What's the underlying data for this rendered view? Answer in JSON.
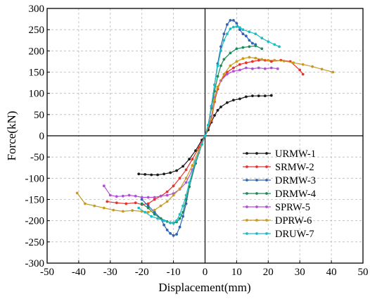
{
  "chart_data": {
    "type": "line",
    "xlabel": "Displacement(mm)",
    "ylabel": "Force(kN)",
    "xlim": [
      -50,
      50
    ],
    "ylim": [
      -300,
      300
    ],
    "x_ticks": [
      -50,
      -40,
      -30,
      -20,
      -10,
      0,
      10,
      20,
      30,
      40,
      50
    ],
    "y_ticks": [
      -300,
      -250,
      -200,
      -150,
      -100,
      -50,
      0,
      50,
      100,
      150,
      200,
      250,
      300
    ],
    "x_tick_labels": [
      "-50",
      "-40",
      "-30",
      "-20",
      "-10",
      "0",
      "10",
      "20",
      "30",
      "40",
      "50"
    ],
    "y_tick_labels": [
      "-300",
      "-250",
      "-200",
      "-150",
      "-100",
      "-50",
      "0",
      "50",
      "100",
      "150",
      "200",
      "250",
      "300"
    ],
    "grid": true,
    "legend_position": "lower-right",
    "series": [
      {
        "name": "URMW-1",
        "color": "#1a1a1a",
        "points": [
          [
            -21,
            -90
          ],
          [
            -19,
            -91
          ],
          [
            -17,
            -92
          ],
          [
            -15,
            -92
          ],
          [
            -13,
            -90
          ],
          [
            -11,
            -87
          ],
          [
            -9,
            -82
          ],
          [
            -7,
            -72
          ],
          [
            -5,
            -55
          ],
          [
            -3,
            -35
          ],
          [
            -1,
            -10
          ],
          [
            0,
            0
          ],
          [
            1,
            14
          ],
          [
            2,
            32
          ],
          [
            3,
            48
          ],
          [
            4,
            60
          ],
          [
            5,
            68
          ],
          [
            7,
            78
          ],
          [
            9,
            84
          ],
          [
            11,
            87
          ],
          [
            13,
            92
          ],
          [
            15,
            94
          ],
          [
            17,
            94
          ],
          [
            19,
            94
          ],
          [
            21,
            95
          ]
        ]
      },
      {
        "name": "SRMW-2",
        "color": "#e8302e",
        "points": [
          [
            -31,
            -155
          ],
          [
            -28,
            -158
          ],
          [
            -25,
            -160
          ],
          [
            -22,
            -158
          ],
          [
            -20,
            -162
          ],
          [
            -18,
            -160
          ],
          [
            -16,
            -150
          ],
          [
            -14,
            -142
          ],
          [
            -12,
            -132
          ],
          [
            -10,
            -118
          ],
          [
            -8,
            -100
          ],
          [
            -6,
            -80
          ],
          [
            -4,
            -55
          ],
          [
            -2,
            -28
          ],
          [
            0,
            0
          ],
          [
            2,
            35
          ],
          [
            3,
            80
          ],
          [
            4,
            110
          ],
          [
            5,
            130
          ],
          [
            7,
            150
          ],
          [
            9,
            160
          ],
          [
            11,
            168
          ],
          [
            13,
            172
          ],
          [
            15,
            175
          ],
          [
            17,
            178
          ],
          [
            19,
            178
          ],
          [
            21,
            175
          ],
          [
            24,
            178
          ],
          [
            27,
            175
          ],
          [
            30,
            155
          ],
          [
            31,
            145
          ]
        ]
      },
      {
        "name": "DRMW-3",
        "color": "#2f64b5",
        "points": [
          [
            -20,
            -150
          ],
          [
            -18,
            -165
          ],
          [
            -16,
            -180
          ],
          [
            -14,
            -195
          ],
          [
            -13,
            -210
          ],
          [
            -12,
            -222
          ],
          [
            -11,
            -230
          ],
          [
            -10,
            -235
          ],
          [
            -9,
            -232
          ],
          [
            -8,
            -215
          ],
          [
            -7,
            -190
          ],
          [
            -6,
            -160
          ],
          [
            -5,
            -120
          ],
          [
            -3,
            -65
          ],
          [
            -1,
            -20
          ],
          [
            0,
            0
          ],
          [
            1,
            25
          ],
          [
            2,
            70
          ],
          [
            3,
            120
          ],
          [
            4,
            170
          ],
          [
            5,
            210
          ],
          [
            6,
            240
          ],
          [
            7,
            262
          ],
          [
            8,
            272
          ],
          [
            9,
            272
          ],
          [
            10,
            265
          ],
          [
            11,
            250
          ],
          [
            12,
            240
          ],
          [
            13,
            235
          ],
          [
            14,
            225
          ],
          [
            15,
            218
          ],
          [
            16,
            215
          ]
        ]
      },
      {
        "name": "DRMW-4",
        "color": "#1d8a58",
        "points": [
          [
            -20,
            -160
          ],
          [
            -18,
            -170
          ],
          [
            -16,
            -185
          ],
          [
            -14,
            -195
          ],
          [
            -12,
            -202
          ],
          [
            -11,
            -205
          ],
          [
            -10,
            -206
          ],
          [
            -9,
            -203
          ],
          [
            -8,
            -195
          ],
          [
            -7,
            -180
          ],
          [
            -6,
            -150
          ],
          [
            -5,
            -120
          ],
          [
            -3,
            -65
          ],
          [
            -1,
            -20
          ],
          [
            0,
            0
          ],
          [
            1,
            25
          ],
          [
            2,
            65
          ],
          [
            3,
            105
          ],
          [
            4,
            140
          ],
          [
            5,
            165
          ],
          [
            6,
            180
          ],
          [
            8,
            195
          ],
          [
            10,
            205
          ],
          [
            12,
            208
          ],
          [
            14,
            210
          ],
          [
            16,
            212
          ],
          [
            18,
            205
          ]
        ]
      },
      {
        "name": "SPRW-5",
        "color": "#b34fd6",
        "points": [
          [
            -32,
            -118
          ],
          [
            -30,
            -140
          ],
          [
            -28,
            -143
          ],
          [
            -26,
            -142
          ],
          [
            -24,
            -140
          ],
          [
            -22,
            -142
          ],
          [
            -20,
            -145
          ],
          [
            -18,
            -145
          ],
          [
            -16,
            -145
          ],
          [
            -14,
            -142
          ],
          [
            -12,
            -140
          ],
          [
            -10,
            -136
          ],
          [
            -8,
            -126
          ],
          [
            -6,
            -110
          ],
          [
            -4,
            -80
          ],
          [
            -2,
            -40
          ],
          [
            0,
            0
          ],
          [
            2,
            45
          ],
          [
            3,
            90
          ],
          [
            4,
            115
          ],
          [
            5,
            130
          ],
          [
            7,
            145
          ],
          [
            9,
            152
          ],
          [
            11,
            155
          ],
          [
            13,
            160
          ],
          [
            15,
            158
          ],
          [
            17,
            160
          ],
          [
            19,
            158
          ],
          [
            21,
            160
          ],
          [
            23,
            158
          ]
        ]
      },
      {
        "name": "DPRW-6",
        "color": "#c99a1d",
        "points": [
          [
            -40.5,
            -135
          ],
          [
            -38,
            -160
          ],
          [
            -35,
            -165
          ],
          [
            -32,
            -170
          ],
          [
            -29,
            -175
          ],
          [
            -26,
            -178
          ],
          [
            -23,
            -176
          ],
          [
            -20,
            -178
          ],
          [
            -18,
            -180
          ],
          [
            -16,
            -175
          ],
          [
            -14,
            -165
          ],
          [
            -12,
            -155
          ],
          [
            -10,
            -140
          ],
          [
            -8,
            -125
          ],
          [
            -6,
            -100
          ],
          [
            -4,
            -70
          ],
          [
            -2,
            -35
          ],
          [
            0,
            0
          ],
          [
            2,
            40
          ],
          [
            3,
            85
          ],
          [
            4,
            115
          ],
          [
            6,
            145
          ],
          [
            8,
            165
          ],
          [
            10,
            175
          ],
          [
            12,
            182
          ],
          [
            14,
            185
          ],
          [
            16,
            183
          ],
          [
            18,
            180
          ],
          [
            20,
            178
          ],
          [
            22,
            178
          ],
          [
            25,
            176
          ],
          [
            28,
            172
          ],
          [
            31,
            168
          ],
          [
            34,
            163
          ],
          [
            37,
            157
          ],
          [
            40.5,
            150
          ]
        ]
      },
      {
        "name": "DRUW-7",
        "color": "#1dbcc4",
        "points": [
          [
            -21,
            -170
          ],
          [
            -19,
            -180
          ],
          [
            -17,
            -190
          ],
          [
            -15,
            -195
          ],
          [
            -13,
            -200
          ],
          [
            -11,
            -205
          ],
          [
            -10,
            -205
          ],
          [
            -9,
            -200
          ],
          [
            -8,
            -185
          ],
          [
            -7,
            -165
          ],
          [
            -6,
            -140
          ],
          [
            -5,
            -110
          ],
          [
            -3,
            -60
          ],
          [
            -1,
            -20
          ],
          [
            0,
            0
          ],
          [
            1,
            25
          ],
          [
            2,
            70
          ],
          [
            3,
            120
          ],
          [
            4,
            165
          ],
          [
            5,
            200
          ],
          [
            6,
            225
          ],
          [
            7,
            240
          ],
          [
            8,
            252
          ],
          [
            9,
            256
          ],
          [
            10,
            257
          ],
          [
            11,
            255
          ],
          [
            12,
            250
          ],
          [
            14,
            245
          ],
          [
            16,
            240
          ],
          [
            18,
            230
          ],
          [
            20,
            222
          ],
          [
            22,
            215
          ],
          [
            23.5,
            210
          ]
        ]
      }
    ]
  }
}
